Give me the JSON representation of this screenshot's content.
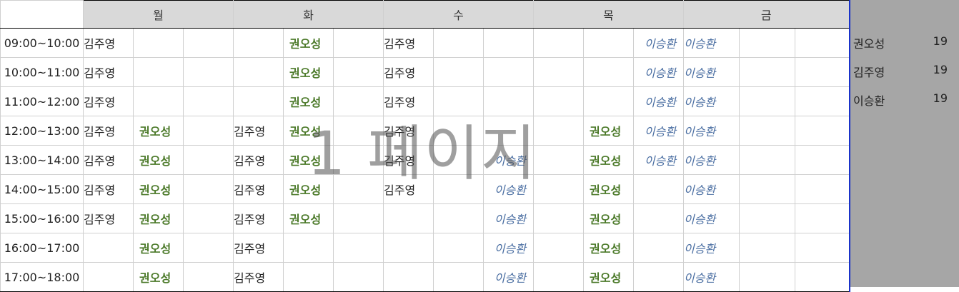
{
  "days": [
    "월",
    "화",
    "수",
    "목",
    "금"
  ],
  "times": [
    "09:00~10:00",
    "10:00~11:00",
    "11:00~12:00",
    "12:00~13:00",
    "13:00~14:00",
    "14:00~15:00",
    "15:00~16:00",
    "16:00~17:00",
    "17:00~18:00"
  ],
  "names": {
    "jy": "김주영",
    "ko": "권오성",
    "ls": "이승환"
  },
  "schedule": [
    [
      "jy",
      "",
      "",
      "",
      "ko",
      "",
      "jy",
      "",
      "",
      "",
      "",
      "ls",
      "ls",
      "",
      ""
    ],
    [
      "jy",
      "",
      "",
      "",
      "ko",
      "",
      "jy",
      "",
      "",
      "",
      "",
      "ls",
      "ls",
      "",
      ""
    ],
    [
      "jy",
      "",
      "",
      "",
      "ko",
      "",
      "jy",
      "",
      "",
      "",
      "",
      "ls",
      "ls",
      "",
      ""
    ],
    [
      "jy",
      "ko",
      "",
      "jy",
      "ko",
      "",
      "jy",
      "",
      "",
      "",
      "ko",
      "ls",
      "ls",
      "",
      ""
    ],
    [
      "jy",
      "ko",
      "",
      "jy",
      "ko",
      "",
      "jy",
      "",
      "ls",
      "",
      "ko",
      "ls",
      "ls",
      "",
      ""
    ],
    [
      "jy",
      "ko",
      "",
      "jy",
      "ko",
      "",
      "jy",
      "",
      "ls",
      "",
      "ko",
      "",
      "ls",
      "",
      ""
    ],
    [
      "jy",
      "ko",
      "",
      "jy",
      "ko",
      "",
      "",
      "",
      "ls",
      "",
      "ko",
      "",
      "ls",
      "",
      ""
    ],
    [
      "",
      "ko",
      "",
      "jy",
      "",
      "",
      "",
      "",
      "ls",
      "",
      "ko",
      "",
      "ls",
      "",
      ""
    ],
    [
      "",
      "ko",
      "",
      "jy",
      "",
      "",
      "",
      "",
      "ls",
      "",
      "ko",
      "",
      "ls",
      "",
      ""
    ]
  ],
  "watermark": "1 페이지",
  "summary": [
    {
      "name": "권오성",
      "count": "19"
    },
    {
      "name": "김주영",
      "count": "19"
    },
    {
      "name": "이승환",
      "count": "19"
    }
  ],
  "colors": {
    "ko": "#4c7a2a",
    "ls": "#4a6ea2",
    "side": "#a6a6a6",
    "header": "#d9d9d9",
    "border_accent": "#1a33c9"
  }
}
